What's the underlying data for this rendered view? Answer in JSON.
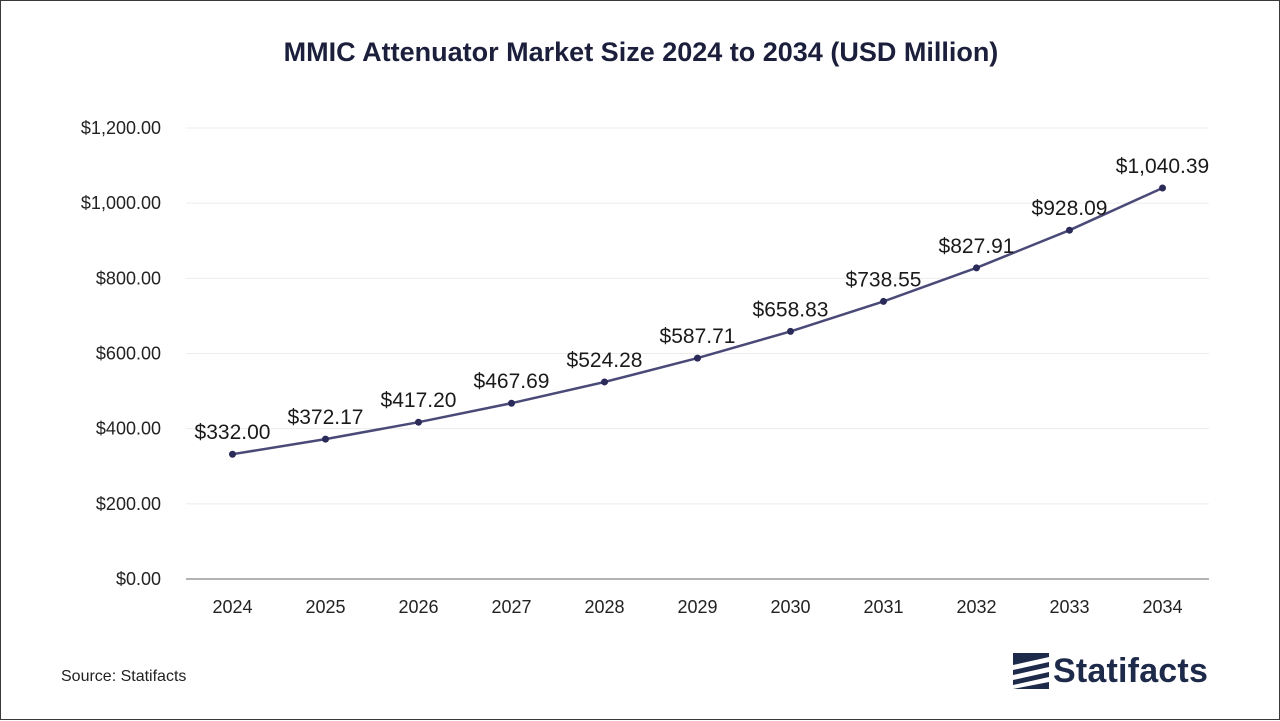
{
  "chart_data": {
    "type": "line",
    "title": "MMIC Attenuator Market Size 2024 to 2034 (USD Million)",
    "xlabel": "",
    "ylabel": "",
    "categories": [
      "2024",
      "2025",
      "2026",
      "2027",
      "2028",
      "2029",
      "2030",
      "2031",
      "2032",
      "2033",
      "2034"
    ],
    "series": [
      {
        "name": "Market Size",
        "values": [
          332.0,
          372.17,
          417.2,
          467.69,
          524.28,
          587.71,
          658.83,
          738.55,
          827.91,
          928.09,
          1040.39
        ]
      }
    ],
    "data_labels": [
      "$332.00",
      "$372.17",
      "$417.20",
      "$467.69",
      "$524.28",
      "$587.71",
      "$658.83",
      "$738.55",
      "$827.91",
      "$928.09",
      "$1,040.39"
    ],
    "ylim": [
      0,
      1200
    ],
    "yticks": [
      0,
      200,
      400,
      600,
      800,
      1000,
      1200
    ],
    "ytick_labels": [
      "$0.00",
      "$200.00",
      "$400.00",
      "$600.00",
      "$800.00",
      "$1,000.00",
      "$1,200.00"
    ],
    "grid": true,
    "legend": "none"
  },
  "footer": {
    "source": "Source: Statifacts",
    "brand": "Statifacts"
  },
  "colors": {
    "line": "#4a4a78",
    "marker": "#2b2b5a",
    "title": "#1b1f3b",
    "grid": "#ececec",
    "axis": "#9a9a9a",
    "brand": "#1e2a4a"
  }
}
